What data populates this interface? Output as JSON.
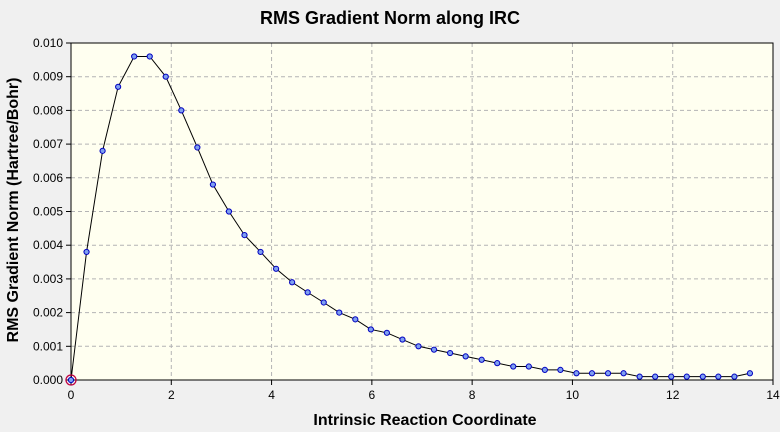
{
  "chart_data": {
    "type": "line",
    "title": "RMS Gradient Norm along IRC",
    "xlabel": "Intrinsic Reaction Coordinate",
    "ylabel": "RMS Gradient Norm (Hartree/Bohr)",
    "xlim": [
      0,
      14
    ],
    "ylim": [
      0,
      0.01
    ],
    "xticks": [
      "0",
      "2",
      "4",
      "6",
      "8",
      "10",
      "12",
      "14"
    ],
    "yticks": [
      "0.000",
      "0.001",
      "0.002",
      "0.003",
      "0.004",
      "0.005",
      "0.006",
      "0.007",
      "0.008",
      "0.009",
      "0.010"
    ],
    "grid": true,
    "legend": "none",
    "colors": {
      "plot_bg": "#fffff0",
      "line": "#000000",
      "marker_fill": "#7fa0f0",
      "marker_stroke": "#0000c0",
      "highlight": "#c00040",
      "grid": "#b4b4b4"
    },
    "series": [
      {
        "x": [
          0.0,
          0.31,
          0.63,
          0.94,
          1.26,
          1.57,
          1.89,
          2.2,
          2.52,
          2.83,
          3.15,
          3.46,
          3.78,
          4.09,
          4.41,
          4.72,
          5.04,
          5.35,
          5.67,
          5.98,
          6.3,
          6.61,
          6.93,
          7.24,
          7.56,
          7.87,
          8.19,
          8.5,
          8.82,
          9.13,
          9.45,
          9.76,
          10.08,
          10.39,
          10.71,
          11.02,
          11.34,
          11.65,
          11.97,
          12.28,
          12.6,
          12.91,
          13.23,
          13.54
        ],
        "y": [
          0.0,
          0.0038,
          0.0068,
          0.0087,
          0.0096,
          0.0096,
          0.009,
          0.008,
          0.0069,
          0.0058,
          0.005,
          0.0043,
          0.0038,
          0.0033,
          0.0029,
          0.0026,
          0.0023,
          0.002,
          0.0018,
          0.0015,
          0.0014,
          0.0012,
          0.001,
          0.0009,
          0.0008,
          0.0007,
          0.0006,
          0.0005,
          0.0004,
          0.0004,
          0.0003,
          0.0003,
          0.0002,
          0.0002,
          0.0002,
          0.0002,
          0.0001,
          0.0001,
          0.0001,
          0.0001,
          0.0001,
          0.0001,
          0.0001,
          0.0002
        ]
      }
    ]
  }
}
